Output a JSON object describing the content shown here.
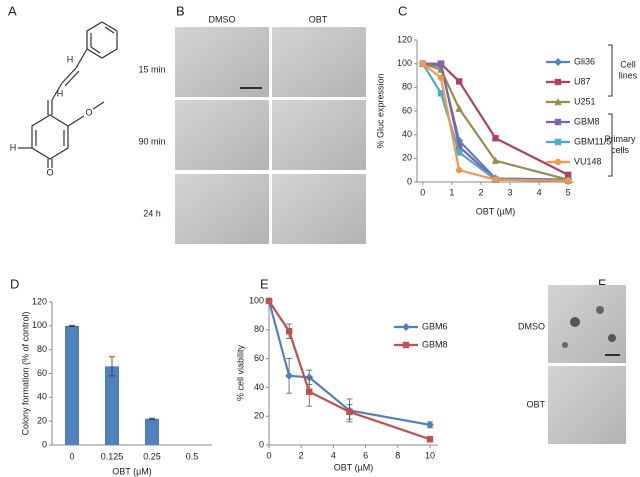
{
  "panels": {
    "letters": [
      "A",
      "B",
      "C",
      "D",
      "E",
      "F"
    ],
    "atoms": [
      "H",
      "H",
      "O",
      "H",
      "O"
    ],
    "B": {
      "columns": [
        "DMSO",
        "OBT"
      ],
      "rows": [
        "15 min",
        "90 min",
        "24 h"
      ]
    },
    "F": {
      "rows": [
        "DMSO",
        "OBT"
      ]
    }
  },
  "chart_data": [
    {
      "type": "line",
      "xlabel": "OBT (µM)",
      "ylabel": "% Gluc expression",
      "x": [
        0,
        0.625,
        1.25,
        2.5,
        5
      ],
      "xlim": [
        -0.2,
        5.2
      ],
      "xticks": [
        0,
        1,
        2,
        3,
        4,
        5
      ],
      "ylim": [
        0,
        120
      ],
      "yticks": [
        0,
        20,
        40,
        60,
        80,
        100,
        120
      ],
      "legend": "right",
      "series": [
        {
          "name": "Gli36",
          "color": "#5b7fbf",
          "marker": "diamond",
          "values": [
            100,
            98,
            35,
            3,
            2
          ]
        },
        {
          "name": "U87",
          "color": "#b0406a",
          "marker": "square",
          "values": [
            100,
            100,
            85,
            37,
            6
          ]
        },
        {
          "name": "U251",
          "color": "#9a8c4a",
          "marker": "triangle",
          "values": [
            100,
            95,
            62,
            18,
            2
          ]
        },
        {
          "name": "GBM8",
          "color": "#8064a2",
          "marker": "square",
          "values": [
            100,
            100,
            30,
            2,
            1
          ]
        },
        {
          "name": "GBM11/5",
          "color": "#4bacc6",
          "marker": "square",
          "values": [
            100,
            75,
            25,
            2,
            1
          ]
        },
        {
          "name": "VU148",
          "color": "#f79646",
          "marker": "circle",
          "values": [
            100,
            88,
            10,
            2,
            1
          ]
        }
      ],
      "annotations": [
        [
          "Cell",
          "lines"
        ],
        [
          "Primary",
          "cells"
        ]
      ]
    },
    {
      "type": "bar",
      "xlabel": "OBT (µM)",
      "ylabel": "Colony formation (% of control)",
      "categories": [
        "0",
        "0.125",
        "0.25",
        "0.5"
      ],
      "values": [
        100,
        66,
        22,
        0
      ],
      "errors": [
        0.5,
        8,
        0.5,
        0
      ],
      "color": "#4f81bd",
      "ylim": [
        0,
        120
      ],
      "yticks": [
        0,
        20,
        40,
        60,
        80,
        100,
        120
      ]
    },
    {
      "type": "line",
      "xlabel": "OBT (µM)",
      "ylabel": "% cell viability",
      "x": [
        0,
        1.25,
        2.5,
        5,
        10
      ],
      "xlim": [
        0,
        10.5
      ],
      "xticks": [
        0,
        2,
        4,
        6,
        8,
        10
      ],
      "ylim": [
        0,
        100
      ],
      "yticks": [
        0,
        20,
        40,
        60,
        80,
        100
      ],
      "legend": "upper right",
      "series": [
        {
          "name": "GBM6",
          "color": "#4f81bd",
          "marker": "diamond",
          "values": [
            100,
            48,
            47,
            24,
            14
          ],
          "errors": [
            0,
            12,
            5,
            8,
            2
          ]
        },
        {
          "name": "GBM8",
          "color": "#c0504d",
          "marker": "square",
          "values": [
            100,
            79,
            37,
            23,
            4
          ],
          "errors": [
            0,
            5,
            10,
            5,
            2
          ]
        }
      ]
    }
  ]
}
